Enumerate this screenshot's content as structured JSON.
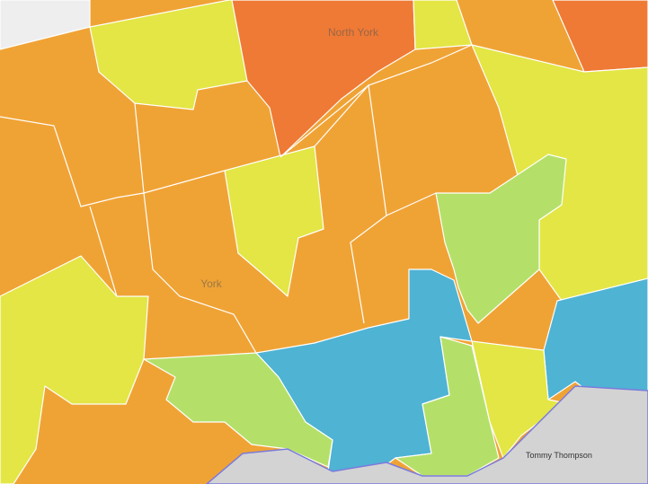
{
  "map": {
    "places": [
      "North York",
      "York",
      "Tommy Thompson"
    ]
  }
}
